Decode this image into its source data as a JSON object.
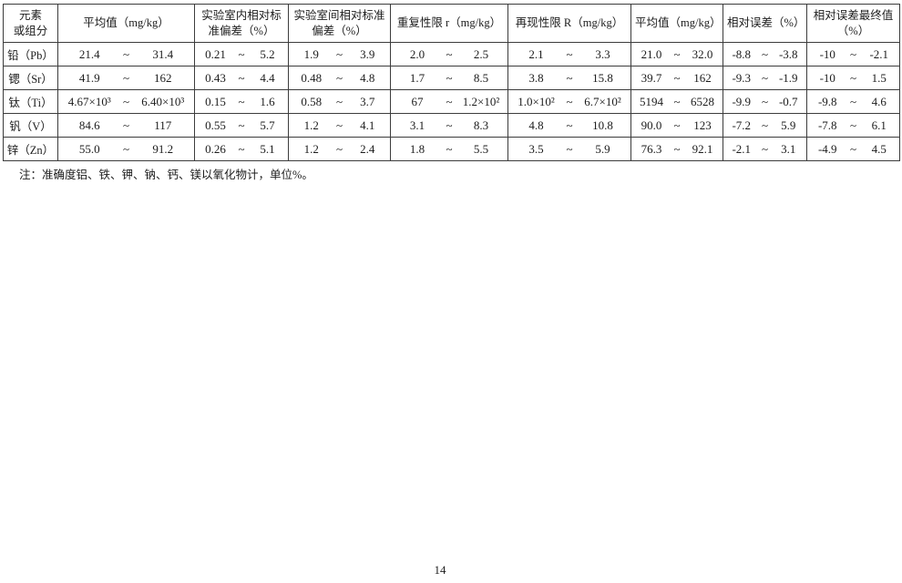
{
  "page": {
    "number": "14"
  },
  "note": "注：准确度铝、铁、钾、钠、钙、镁以氧化物计，单位%。",
  "table": {
    "tilde": "~",
    "columns": [
      {
        "label": "元素\n或组分"
      },
      {
        "label": "平均值（mg/kg）"
      },
      {
        "label": "实验室内相对标准偏差（%）"
      },
      {
        "label": "实验室间相对标准偏差（%）"
      },
      {
        "label": "重复性限 r（mg/kg）"
      },
      {
        "label": "再现性限 R（mg/kg）"
      },
      {
        "label": "平均值（mg/kg）"
      },
      {
        "label": "相对误差（%）"
      },
      {
        "label": "相对误差最终值（%）"
      }
    ],
    "rows": [
      {
        "element": "铅（Pb）",
        "ranges": [
          [
            "21.4",
            "31.4"
          ],
          [
            "0.21",
            "5.2"
          ],
          [
            "1.9",
            "3.9"
          ],
          [
            "2.0",
            "2.5"
          ],
          [
            "2.1",
            "3.3"
          ],
          [
            "21.0",
            "32.0"
          ],
          [
            "-8.8",
            "-3.8"
          ],
          [
            "-10",
            "-2.1"
          ]
        ]
      },
      {
        "element": "锶（Sr）",
        "ranges": [
          [
            "41.9",
            "162"
          ],
          [
            "0.43",
            "4.4"
          ],
          [
            "0.48",
            "4.8"
          ],
          [
            "1.7",
            "8.5"
          ],
          [
            "3.8",
            "15.8"
          ],
          [
            "39.7",
            "162"
          ],
          [
            "-9.3",
            "-1.9"
          ],
          [
            "-10",
            "1.5"
          ]
        ]
      },
      {
        "element": "钛（Ti）",
        "ranges": [
          [
            "4.67×10³",
            "6.40×10³"
          ],
          [
            "0.15",
            "1.6"
          ],
          [
            "0.58",
            "3.7"
          ],
          [
            "67",
            "1.2×10²"
          ],
          [
            "1.0×10²",
            "6.7×10²"
          ],
          [
            "5194",
            "6528"
          ],
          [
            "-9.9",
            "-0.7"
          ],
          [
            "-9.8",
            "4.6"
          ]
        ]
      },
      {
        "element": "钒（V）",
        "ranges": [
          [
            "84.6",
            "117"
          ],
          [
            "0.55",
            "5.7"
          ],
          [
            "1.2",
            "4.1"
          ],
          [
            "3.1",
            "8.3"
          ],
          [
            "4.8",
            "10.8"
          ],
          [
            "90.0",
            "123"
          ],
          [
            "-7.2",
            "5.9"
          ],
          [
            "-7.8",
            "6.1"
          ]
        ]
      },
      {
        "element": "锌（Zn）",
        "ranges": [
          [
            "55.0",
            "91.2"
          ],
          [
            "0.26",
            "5.1"
          ],
          [
            "1.2",
            "2.4"
          ],
          [
            "1.8",
            "5.5"
          ],
          [
            "3.5",
            "5.9"
          ],
          [
            "76.3",
            "92.1"
          ],
          [
            "-2.1",
            "3.1"
          ],
          [
            "-4.9",
            "4.5"
          ]
        ]
      }
    ]
  }
}
